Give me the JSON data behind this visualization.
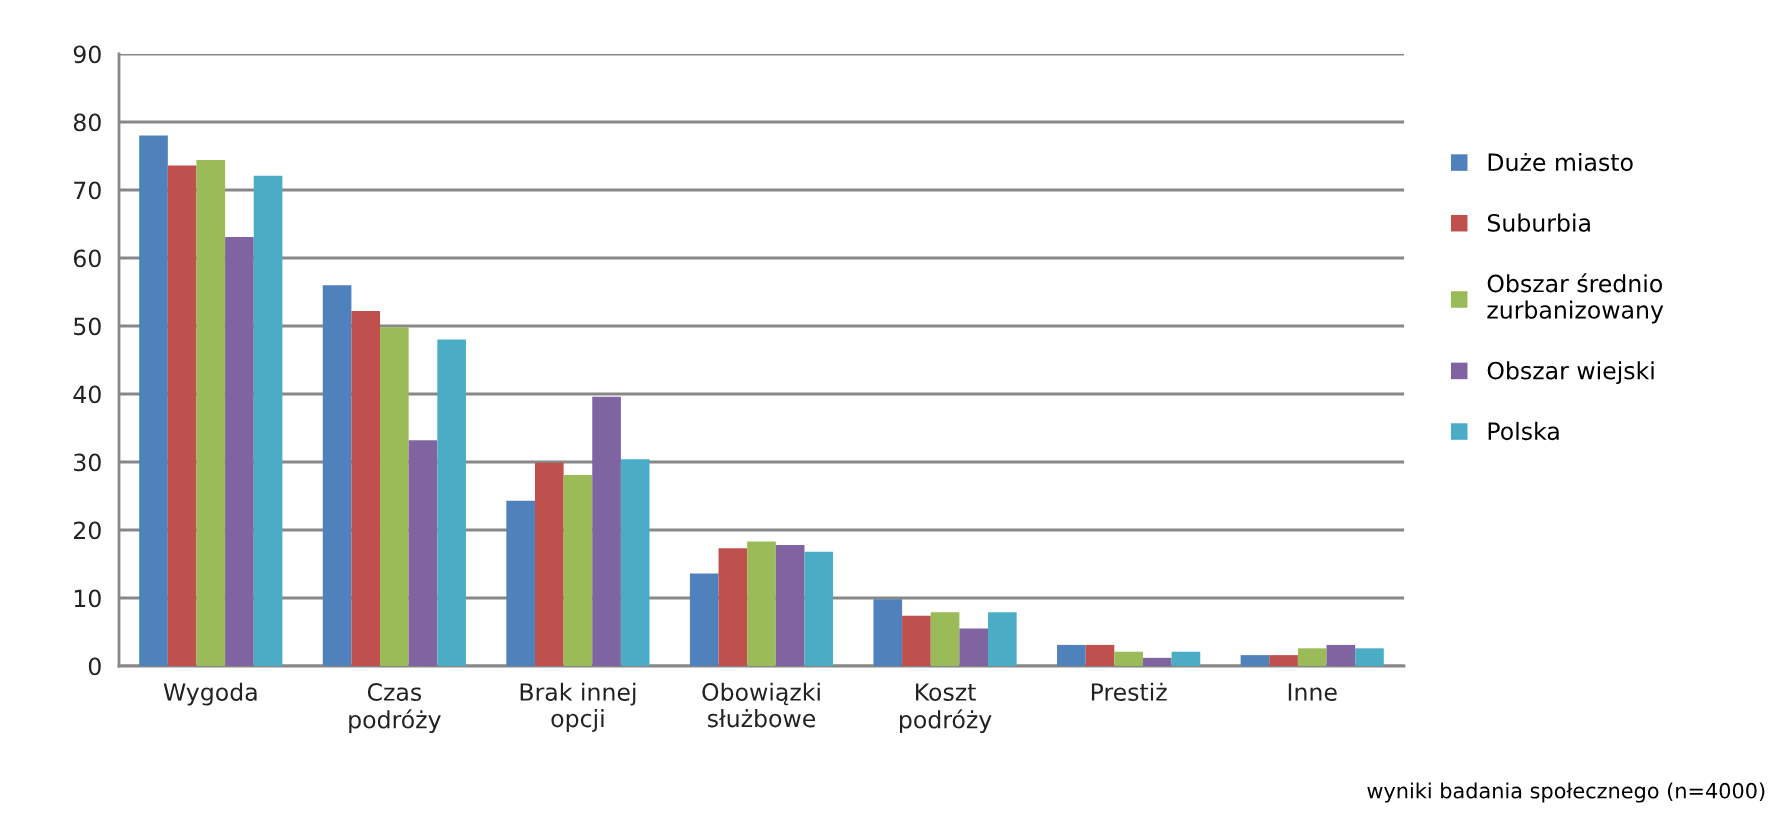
{
  "chart_data": {
    "type": "bar",
    "categories": [
      "Wygoda",
      "Czas\npodróży",
      "Brak innej\nopcji",
      "Obowiązki\nsłużbowe",
      "Koszt\npodróży",
      "Prestiż",
      "Inne"
    ],
    "series": [
      {
        "name": "Duże miasto",
        "color": "#4f81bd",
        "values": [
          78,
          56,
          24.3,
          13.6,
          9.8,
          3.1,
          1.6
        ]
      },
      {
        "name": "Suburbia",
        "color": "#c0504d",
        "values": [
          73.6,
          52.2,
          29.9,
          17.3,
          7.4,
          3.1,
          1.6
        ]
      },
      {
        "name": "Obszar średnio\nzurbanizowany",
        "color": "#9bbb59",
        "values": [
          74.4,
          49.8,
          28.1,
          18.3,
          7.9,
          2.1,
          2.6
        ]
      },
      {
        "name": "Obszar wiejski",
        "color": "#8064a2",
        "values": [
          63.1,
          33.2,
          39.6,
          17.8,
          5.5,
          1.2,
          3.1
        ]
      },
      {
        "name": "Polska",
        "color": "#4bacc6",
        "values": [
          72.1,
          48,
          30.4,
          16.8,
          7.9,
          2.1,
          2.6
        ]
      }
    ],
    "ylim": [
      0,
      90
    ],
    "yticks": [
      0,
      10,
      20,
      30,
      40,
      50,
      60,
      70,
      80,
      90
    ],
    "grid": "y",
    "legend": "right",
    "annotations": [
      "wyniki badania społecznego (n=4000)"
    ]
  }
}
